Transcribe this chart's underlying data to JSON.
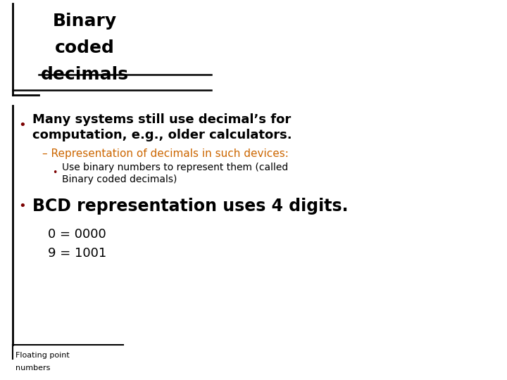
{
  "bg_color": "#ffffff",
  "title_line1": "Binary",
  "title_line2": "coded",
  "title_line3": "decimals",
  "title_color": "#000000",
  "bullet1_text_line1": "Many systems still use decimal’s for",
  "bullet1_text_line2": "computation, e.g., older calculators.",
  "bullet1_color": "#000000",
  "bullet1_dot_color": "#7b0000",
  "sub1_text": "– Representation of decimals in such devices:",
  "sub1_color": "#cc6600",
  "sub2_line1": "Use binary numbers to represent them (called",
  "sub2_line2": "Binary coded decimals)",
  "sub2_color": "#000000",
  "sub2_dot_color": "#7b0000",
  "bullet2_text": "BCD representation uses 4 digits.",
  "bullet2_color": "#000000",
  "bullet2_dot_color": "#7b0000",
  "code1_text": "0 = 0000",
  "code2_text": "9 = 1001",
  "code_color": "#000000",
  "footer_text_line1": "Floating point",
  "footer_text_line2": "numbers",
  "footer_color": "#000000",
  "left_line_color": "#000000",
  "strike_line_color": "#000000",
  "sep_line_color": "#000000"
}
